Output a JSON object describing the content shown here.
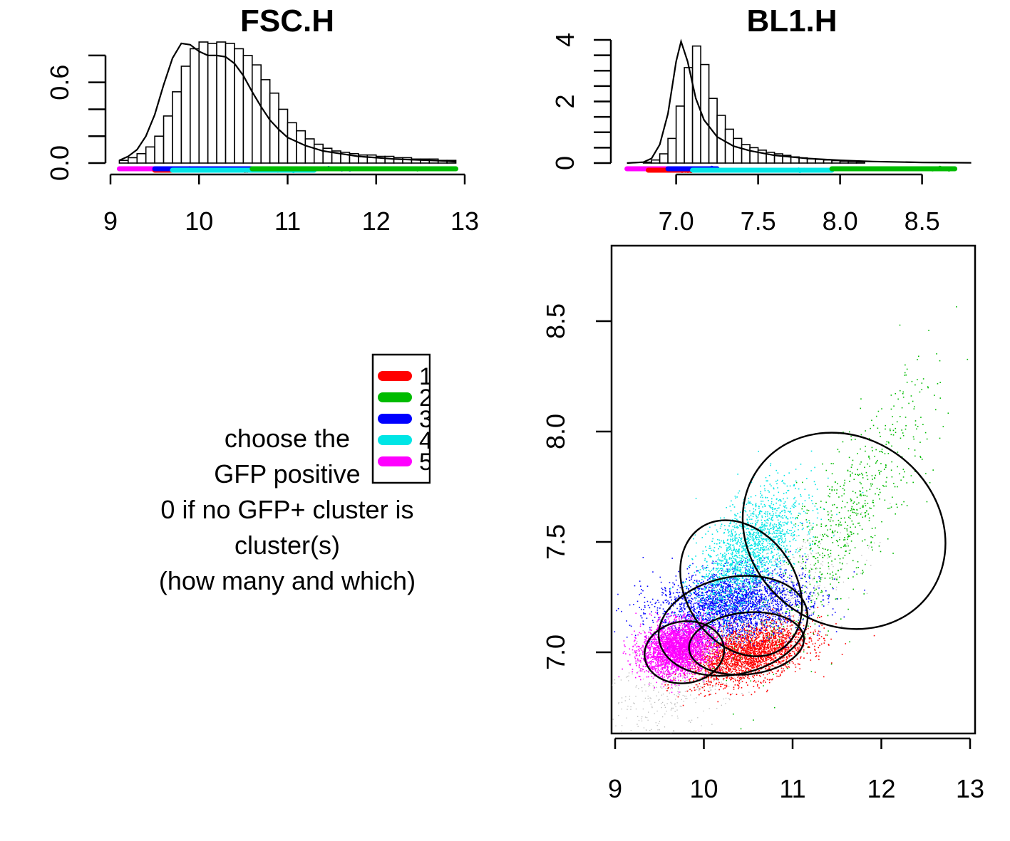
{
  "chart_data": [
    {
      "type": "bar",
      "title": "FSC.H",
      "xlim": [
        9,
        13
      ],
      "x_ticks": [
        "9",
        "10",
        "11",
        "12",
        "13"
      ],
      "y_ticks": [
        "0.0",
        "0.6"
      ],
      "ylim": [
        0,
        0.9
      ],
      "bin_start": 9.1,
      "bin_width": 0.1,
      "values": [
        0.02,
        0.04,
        0.07,
        0.12,
        0.2,
        0.35,
        0.53,
        0.72,
        0.85,
        0.9,
        0.89,
        0.9,
        0.89,
        0.85,
        0.8,
        0.73,
        0.62,
        0.52,
        0.4,
        0.3,
        0.24,
        0.18,
        0.14,
        0.11,
        0.09,
        0.08,
        0.07,
        0.06,
        0.06,
        0.05,
        0.05,
        0.04,
        0.04,
        0.03,
        0.03,
        0.03,
        0.02,
        0.02
      ],
      "density_curve": {
        "x": [
          9.1,
          9.2,
          9.3,
          9.4,
          9.5,
          9.6,
          9.7,
          9.8,
          9.9,
          10.0,
          10.1,
          10.2,
          10.3,
          10.4,
          10.5,
          10.6,
          10.7,
          10.8,
          10.9,
          11.0,
          11.2,
          11.4,
          11.6,
          11.8,
          12.0,
          12.2,
          12.4,
          12.6,
          12.8,
          12.9
        ],
        "y": [
          0.02,
          0.05,
          0.1,
          0.2,
          0.36,
          0.58,
          0.78,
          0.89,
          0.88,
          0.83,
          0.8,
          0.8,
          0.79,
          0.74,
          0.65,
          0.53,
          0.42,
          0.32,
          0.25,
          0.19,
          0.13,
          0.09,
          0.07,
          0.05,
          0.04,
          0.03,
          0.025,
          0.02,
          0.015,
          0.01
        ]
      },
      "cluster_ranges": [
        {
          "cluster": "5",
          "color": "#ff00ff",
          "x": [
            9.1,
            10.2
          ]
        },
        {
          "cluster": "1",
          "color": "#ff0000",
          "x": [
            9.5,
            11.0
          ]
        },
        {
          "cluster": "3",
          "color": "#0000ff",
          "x": [
            9.5,
            12.1
          ]
        },
        {
          "cluster": "4",
          "color": "#00e5e5",
          "x": [
            9.7,
            11.3
          ]
        },
        {
          "cluster": "2",
          "color": "#00bb00",
          "x": [
            10.6,
            12.9
          ]
        }
      ]
    },
    {
      "type": "bar",
      "title": "BL1.H",
      "xlim": [
        6.68,
        8.78
      ],
      "x_ticks": [
        "7.0",
        "7.5",
        "8.0",
        "8.5"
      ],
      "y_ticks": [
        "0",
        "2",
        "4"
      ],
      "ylim": [
        0,
        4
      ],
      "bin_start": 6.8,
      "bin_width": 0.05,
      "values": [
        0.03,
        0.1,
        0.3,
        0.8,
        1.85,
        3.1,
        3.8,
        3.2,
        2.1,
        1.55,
        1.1,
        0.8,
        0.6,
        0.5,
        0.42,
        0.35,
        0.3,
        0.25,
        0.2,
        0.17,
        0.14,
        0.12,
        0.1,
        0.08,
        0.06,
        0.05,
        0.04
      ],
      "density_curve": {
        "x": [
          6.7,
          6.8,
          6.85,
          6.9,
          6.95,
          7.0,
          7.03,
          7.07,
          7.12,
          7.17,
          7.25,
          7.35,
          7.45,
          7.6,
          7.8,
          8.0,
          8.2,
          8.5,
          8.8
        ],
        "y": [
          0,
          0.03,
          0.15,
          0.6,
          1.6,
          3.3,
          3.95,
          3.3,
          2.1,
          1.4,
          0.85,
          0.55,
          0.4,
          0.25,
          0.15,
          0.09,
          0.05,
          0.02,
          0.01
        ]
      },
      "cluster_ranges": [
        {
          "cluster": "5",
          "color": "#ff00ff",
          "x": [
            6.7,
            7.25
          ]
        },
        {
          "cluster": "1",
          "color": "#ff0000",
          "x": [
            6.83,
            7.1
          ]
        },
        {
          "cluster": "3",
          "color": "#0000ff",
          "x": [
            6.95,
            7.25
          ]
        },
        {
          "cluster": "4",
          "color": "#00e5e5",
          "x": [
            7.1,
            7.95
          ]
        },
        {
          "cluster": "2",
          "color": "#00bb00",
          "x": [
            7.95,
            8.7
          ]
        }
      ]
    },
    {
      "type": "scatter",
      "title": "",
      "xlabel": "",
      "ylabel": "",
      "xlim": [
        9,
        13
      ],
      "ylim": [
        6.7,
        8.85
      ],
      "x_ticks": [
        "9",
        "10",
        "11",
        "12",
        "13"
      ],
      "y_ticks": [
        "7.0",
        "7.5",
        "8.0",
        "8.5"
      ],
      "clusters": [
        {
          "name": "1",
          "color": "#ff0000",
          "center": [
            10.5,
            7.0
          ],
          "n": 2500
        },
        {
          "name": "2",
          "color": "#00bb00",
          "center": [
            11.6,
            7.6
          ],
          "n": 700
        },
        {
          "name": "3",
          "color": "#0000ff",
          "center": [
            10.3,
            7.22
          ],
          "n": 2500
        },
        {
          "name": "4",
          "color": "#00e5e5",
          "center": [
            10.5,
            7.45
          ],
          "n": 1800
        },
        {
          "name": "5",
          "color": "#ff00ff",
          "center": [
            9.7,
            7.02
          ],
          "n": 3000
        }
      ]
    }
  ],
  "legend": {
    "entries": [
      {
        "label": "1",
        "color": "#ff0000"
      },
      {
        "label": "2",
        "color": "#00bb00"
      },
      {
        "label": "3",
        "color": "#0000ff"
      },
      {
        "label": "4",
        "color": "#00e5e5"
      },
      {
        "label": "5",
        "color": "#ff00ff"
      }
    ]
  },
  "prompt_text": {
    "line1": "choose the",
    "line2": "GFP positive",
    "line3": "0 if no GFP+ cluster is",
    "line4": "cluster(s)",
    "line5": "(how many and which)"
  }
}
